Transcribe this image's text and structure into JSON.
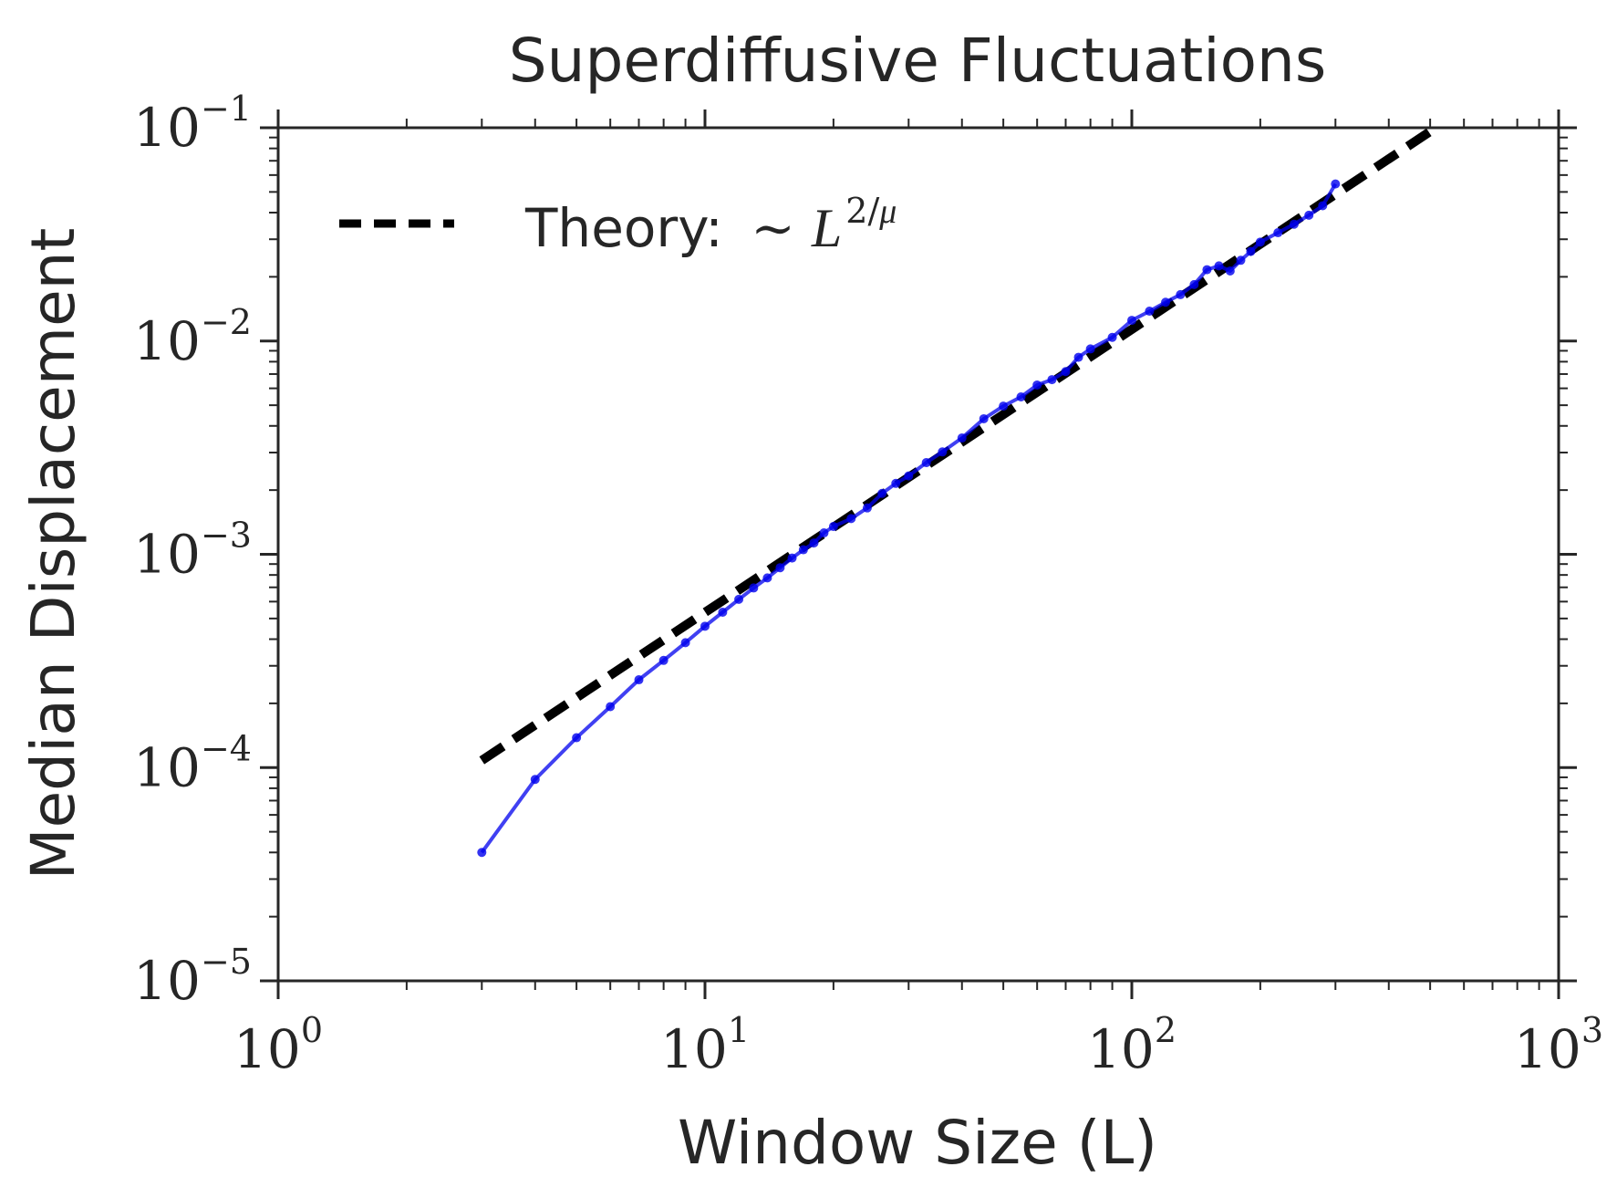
{
  "chart_data": {
    "type": "line",
    "title": "Superdiffusive Fluctuations",
    "xlabel": "Window Size (L)",
    "ylabel": "Median Displacement",
    "xscale": "log",
    "yscale": "log",
    "xlim": [
      1,
      1000
    ],
    "ylim": [
      1e-05,
      0.1
    ],
    "grid": false,
    "legend_placement": "top-left",
    "x_ticks": [
      {
        "base": "10",
        "exp": "0"
      },
      {
        "base": "10",
        "exp": "1"
      },
      {
        "base": "10",
        "exp": "2"
      },
      {
        "base": "10",
        "exp": "3"
      }
    ],
    "y_ticks": [
      {
        "base": "10",
        "exp": "−5"
      },
      {
        "base": "10",
        "exp": "−4"
      },
      {
        "base": "10",
        "exp": "−3"
      },
      {
        "base": "10",
        "exp": "−2"
      },
      {
        "base": "10",
        "exp": "−1"
      }
    ],
    "legend": {
      "text": "Theory: ",
      "sim": "∼",
      "var": "L",
      "exp_num": "2",
      "exp_slash": "/",
      "exp_var": "μ"
    },
    "series": [
      {
        "kind": "theory",
        "color": "#000000",
        "dashed": true,
        "x": [
          3,
          500
        ],
        "y": [
          0.000108,
          0.096
        ]
      },
      {
        "kind": "data",
        "color": "#0000ee",
        "x": [
          3,
          4,
          5,
          6,
          7,
          8,
          9,
          10,
          11,
          12,
          13,
          14,
          15,
          16,
          17,
          18,
          19,
          20,
          22,
          24,
          26,
          28,
          30,
          33,
          36,
          40,
          45,
          50,
          55,
          60,
          65,
          70,
          75,
          80,
          90,
          100,
          110,
          120,
          130,
          140,
          150,
          160,
          170,
          180,
          190,
          200,
          220,
          240,
          260,
          280,
          300
        ],
        "y": [
          4e-05,
          8.8e-05,
          0.000138,
          0.000193,
          0.000258,
          0.000318,
          0.000385,
          0.00046,
          0.000535,
          0.000615,
          0.000695,
          0.000775,
          0.000865,
          0.00096,
          0.00105,
          0.00113,
          0.00126,
          0.00135,
          0.00147,
          0.00165,
          0.00193,
          0.00215,
          0.00233,
          0.00269,
          0.00302,
          0.00351,
          0.00432,
          0.00495,
          0.00547,
          0.00622,
          0.00659,
          0.00719,
          0.00839,
          0.00918,
          0.0104,
          0.0125,
          0.0138,
          0.0152,
          0.0165,
          0.0184,
          0.0216,
          0.0225,
          0.0213,
          0.0239,
          0.0263,
          0.0291,
          0.0322,
          0.0353,
          0.0389,
          0.0431,
          0.0545
        ]
      }
    ]
  }
}
